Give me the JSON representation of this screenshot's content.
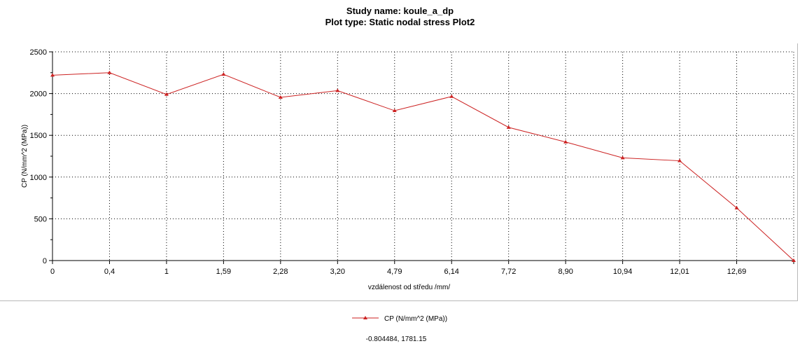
{
  "header": {
    "study_name": "Study name: koule_a_dp",
    "plot_type": "Plot type: Static nodal stress Plot2"
  },
  "chart_data": {
    "type": "line",
    "categories": [
      "0",
      "0,4",
      "1",
      "1,59",
      "2,28",
      "3,20",
      "4,79",
      "6,14",
      "7,72",
      "8,90",
      "10,94",
      "12,01",
      "12,69",
      ""
    ],
    "series": [
      {
        "name": "CP (N/mm^2 (MPa))",
        "values": [
          2220,
          2250,
          1990,
          2230,
          1955,
          2035,
          1795,
          1965,
          1595,
          1420,
          1230,
          1195,
          630,
          0
        ],
        "color": "#cc2222",
        "marker": "triangle"
      }
    ],
    "ylim": [
      0,
      2500
    ],
    "yticks": [
      "0",
      "500",
      "1000",
      "1500",
      "2000",
      "2500"
    ],
    "xlabel": "vzdálenost od  středu /mm/",
    "ylabel": "CP (N/mm^2 (MPa))",
    "grid": true,
    "grid_style": "dotted",
    "legend_position": "bottom-center"
  },
  "readout": {
    "coordinates": "-0.804484, 1781.15"
  },
  "colors": {
    "series": "#cc2222",
    "grid": "#000000",
    "axis": "#000000"
  }
}
